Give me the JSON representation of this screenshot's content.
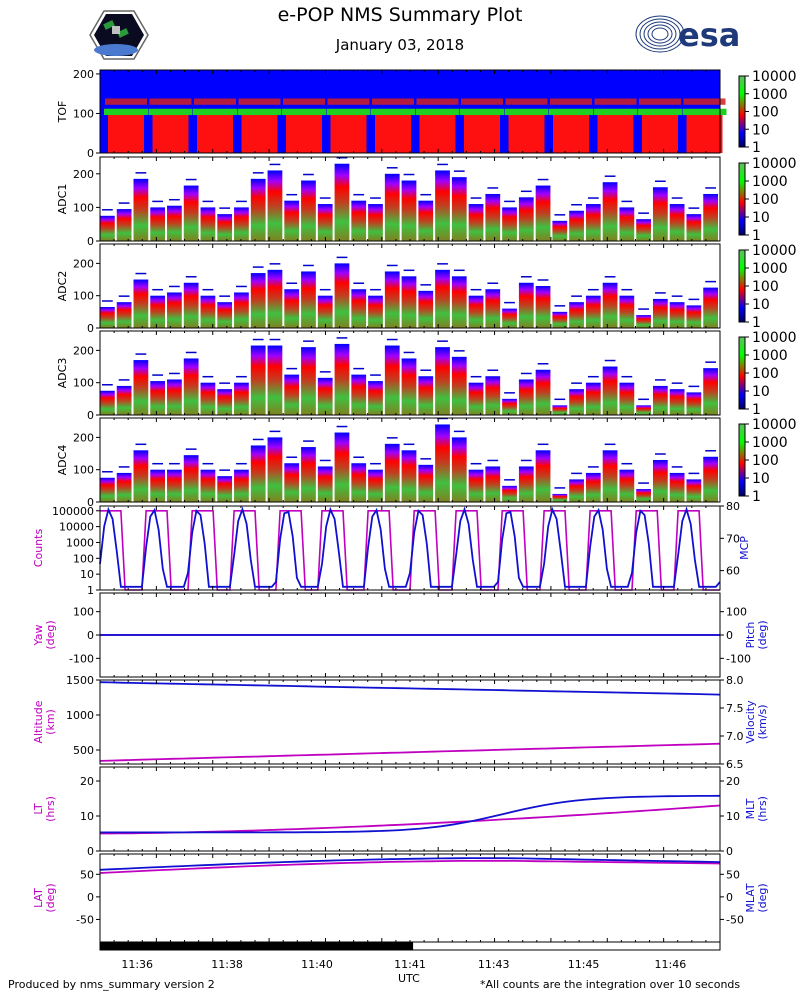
{
  "header": {
    "title": "e-POP NMS Summary Plot",
    "date": "January 03, 2018",
    "logo_right_text": "esa"
  },
  "footer": {
    "left": "Produced by nms_summary version 2",
    "right": "*All counts are the integration over 10 seconds",
    "x_axis_label": "UTC"
  },
  "colors": {
    "magenta": "#c000c0",
    "blue": "#1010d0",
    "spec_bg": "#0000ff"
  },
  "chart_data": [
    {
      "type": "heatmap",
      "panel": "TOF",
      "ylabel": "TOF",
      "ylim": [
        0,
        210
      ],
      "yticks": [
        "0",
        "100",
        "200"
      ],
      "colorbar_ticks": [
        "10000",
        "1000",
        "100",
        "10",
        "1"
      ],
      "high_band_center": 100,
      "upper_band_center": 130
    },
    {
      "type": "heatmap",
      "panel": "ADC1",
      "ylabel": "ADC1",
      "ylim": [
        0,
        250
      ],
      "yticks": [
        "0",
        "100",
        "200"
      ],
      "colorbar_ticks": [
        "10000",
        "1000",
        "100",
        "10",
        "1"
      ],
      "block_heights": [
        75,
        95,
        185,
        100,
        105,
        165,
        100,
        80,
        100,
        185,
        210,
        120,
        180,
        110,
        230,
        120,
        110,
        200,
        180,
        120,
        210,
        190,
        110,
        140,
        100,
        130,
        165,
        60,
        90,
        110,
        175,
        100,
        65,
        160,
        110,
        80,
        140
      ]
    },
    {
      "type": "heatmap",
      "panel": "ADC2",
      "ylabel": "ADC2",
      "ylim": [
        0,
        260
      ],
      "yticks": [
        "0",
        "100",
        "200"
      ],
      "colorbar_ticks": [
        "10000",
        "1000",
        "100",
        "10",
        "1"
      ],
      "block_heights": [
        65,
        80,
        150,
        100,
        110,
        140,
        100,
        80,
        110,
        170,
        180,
        120,
        175,
        100,
        200,
        120,
        100,
        175,
        160,
        115,
        180,
        160,
        100,
        120,
        60,
        140,
        130,
        50,
        80,
        100,
        140,
        100,
        40,
        90,
        80,
        70,
        125
      ]
    },
    {
      "type": "heatmap",
      "panel": "ADC3",
      "ylabel": "ADC3",
      "ylim": [
        0,
        260
      ],
      "yticks": [
        "0",
        "100",
        "200"
      ],
      "colorbar_ticks": [
        "10000",
        "1000",
        "100",
        "10",
        "1"
      ],
      "block_heights": [
        75,
        90,
        170,
        105,
        110,
        175,
        100,
        80,
        100,
        215,
        215,
        125,
        210,
        115,
        220,
        125,
        105,
        215,
        175,
        120,
        210,
        180,
        100,
        120,
        50,
        110,
        140,
        30,
        80,
        100,
        150,
        100,
        30,
        90,
        80,
        70,
        145
      ]
    },
    {
      "type": "heatmap",
      "panel": "ADC4",
      "ylabel": "ADC4",
      "ylim": [
        0,
        260
      ],
      "yticks": [
        "0",
        "100",
        "200"
      ],
      "colorbar_ticks": [
        "10000",
        "1000",
        "100",
        "10",
        "1"
      ],
      "block_heights": [
        75,
        90,
        160,
        100,
        100,
        145,
        100,
        80,
        100,
        175,
        200,
        120,
        170,
        110,
        215,
        120,
        100,
        180,
        160,
        115,
        240,
        200,
        100,
        110,
        50,
        110,
        160,
        25,
        70,
        90,
        160,
        100,
        40,
        130,
        90,
        70,
        140
      ]
    },
    {
      "type": "line",
      "panel": "Counts/MCP",
      "ylabel_left": "Counts",
      "ylabel_right": "MCP",
      "left_scale": "log",
      "left_ylim": [
        1,
        200000
      ],
      "left_yticks": [
        "1",
        "10",
        "100",
        "1000",
        "10000",
        "100000"
      ],
      "right_ylim": [
        54,
        80
      ],
      "right_yticks": [
        "60",
        "70",
        "80"
      ],
      "x": [
        0,
        0.25,
        0.5,
        0.75,
        1,
        1.25,
        1.5,
        1.75,
        2,
        2.25,
        2.5,
        2.75,
        3,
        3.25,
        3.5,
        3.75,
        4,
        4.25,
        4.5,
        4.75,
        5,
        5.25,
        5.5,
        5.75,
        6,
        6.25,
        6.5,
        6.75,
        7,
        7.25,
        7.5,
        7.75,
        8,
        8.25,
        8.5,
        8.75,
        9,
        9.25,
        9.5,
        9.75,
        10,
        10.25,
        10.5,
        10.75,
        11,
        11.25,
        11.5,
        11.75,
        12,
        12.25,
        12.5,
        12.75,
        13,
        13.25,
        13.5,
        13.75,
        14,
        14.25,
        14.5,
        14.75,
        15,
        15.25,
        15.5,
        15.75,
        16,
        16.25,
        16.5,
        16.75,
        17,
        17.25,
        17.5,
        17.75,
        18,
        18.25,
        18.5,
        18.75,
        19,
        19.25,
        19.5,
        19.75,
        20,
        20.25,
        20.5,
        20.75,
        21,
        21.25,
        21.5,
        21.75,
        22,
        22.25,
        22.5,
        22.75,
        23,
        23.25,
        23.5,
        23.75,
        24,
        24.25,
        24.5,
        24.75,
        25,
        25.25,
        25.5,
        25.75,
        26,
        26.25,
        26.5,
        26.75,
        27,
        27.25,
        27.5,
        27.75,
        28,
        28.25,
        28.5,
        28.75,
        29,
        29.25,
        29.5,
        29.75,
        30,
        30.25,
        30.5,
        30.75,
        31,
        31.25,
        31.5,
        31.75,
        32,
        32.25,
        32.5,
        32.75,
        33,
        33.25,
        33.5,
        33.75,
        34,
        34.25,
        34.5,
        34.75,
        35,
        35.25,
        35.5,
        35.75,
        36,
        36.25,
        36.5,
        36.75,
        37
      ],
      "series": [
        {
          "name": "Counts",
          "color": "#c000c0",
          "axis": "left",
          "period_min": 1.0,
          "high_value": 100000,
          "low_value": 1
        },
        {
          "name": "MCP",
          "color": "#1010d0",
          "axis": "right",
          "period_min": 1.0,
          "high_value": 79,
          "low_value": 55
        }
      ]
    },
    {
      "type": "line",
      "panel": "Yaw/Pitch",
      "ylabel_left": "Yaw\n(deg)",
      "ylabel_right": "Pitch\n(deg)",
      "left_ylim": [
        -180,
        180
      ],
      "left_yticks": [
        "-100",
        "0",
        "100"
      ],
      "right_ylim": [
        -180,
        180
      ],
      "right_yticks": [
        "-100",
        "0",
        "100"
      ],
      "series": [
        {
          "name": "Yaw",
          "color": "#c000c0",
          "values": [
            0,
            0
          ]
        },
        {
          "name": "Pitch",
          "color": "#1010d0",
          "values": [
            0,
            0
          ]
        }
      ]
    },
    {
      "type": "line",
      "panel": "Altitude/Velocity",
      "ylabel_left": "Altitude\n(km)",
      "ylabel_right": "Velocity\n(km/s)",
      "left_ylim": [
        300,
        1500
      ],
      "left_yticks": [
        "500",
        "1000",
        "1500"
      ],
      "right_ylim": [
        6.5,
        8.0
      ],
      "right_yticks": [
        "6.5",
        "7.0",
        "7.5",
        "8.0"
      ],
      "series": [
        {
          "name": "Altitude",
          "color": "#c000c0",
          "start": 345,
          "end": 590
        },
        {
          "name": "Velocity",
          "color": "#1010d0",
          "start": 7.96,
          "end": 7.74
        }
      ]
    },
    {
      "type": "line",
      "panel": "LT/MLT",
      "ylabel_left": "LT\n(hrs)",
      "ylabel_right": "MLT\n(hrs)",
      "left_ylim": [
        0,
        24
      ],
      "left_yticks": [
        "0",
        "10",
        "20"
      ],
      "right_ylim": [
        0,
        24
      ],
      "right_yticks": [
        "0",
        "10",
        "20"
      ],
      "series": [
        {
          "name": "LT",
          "color": "#c000c0",
          "start": 5.0,
          "end": 13.0
        },
        {
          "name": "MLT",
          "color": "#1010d0",
          "start": 5.3,
          "end": 15.8
        }
      ]
    },
    {
      "type": "line",
      "panel": "LAT/MLAT",
      "ylabel_left": "LAT\n(deg)",
      "ylabel_right": "MLAT\n(deg)",
      "left_ylim": [
        -100,
        95
      ],
      "left_yticks": [
        "-50",
        "0",
        "50"
      ],
      "right_ylim": [
        -100,
        95
      ],
      "right_yticks": [
        "-50",
        "0",
        "50"
      ],
      "series": [
        {
          "name": "LAT",
          "color": "#c000c0",
          "start": 53,
          "peak": 80,
          "end": 74
        },
        {
          "name": "MLAT",
          "color": "#1010d0",
          "start": 60,
          "peak": 86,
          "end": 77
        }
      ]
    }
  ],
  "x_axis": {
    "label": "UTC",
    "tick_labels": [
      "11:36",
      "11:38",
      "11:40",
      "11:41",
      "11:43",
      "11:45",
      "11:46"
    ],
    "coverage_fraction": 0.505
  }
}
